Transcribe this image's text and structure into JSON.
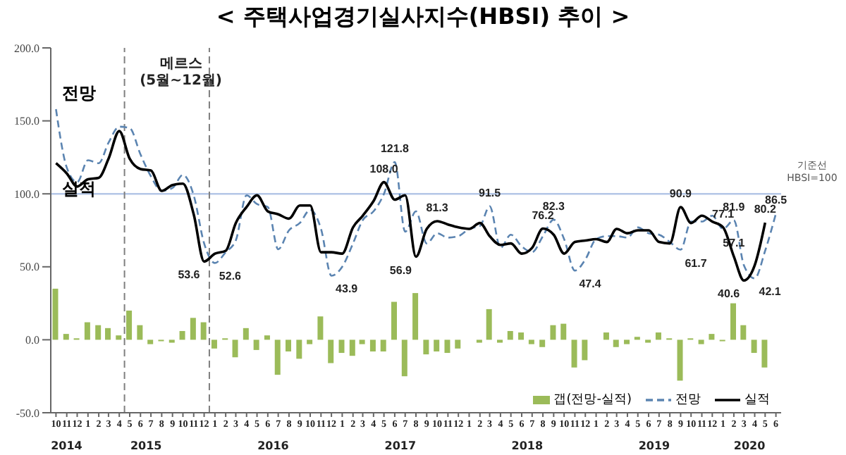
{
  "chart_data": {
    "type": "line",
    "title": "< 주택사업경기실사지수(HBSI) 추이 >",
    "x": [
      "2014-10",
      "2014-11",
      "2014-12",
      "2015-01",
      "2015-02",
      "2015-03",
      "2015-04",
      "2015-05",
      "2015-06",
      "2015-07",
      "2015-08",
      "2015-09",
      "2015-10",
      "2015-11",
      "2015-12",
      "2016-01",
      "2016-02",
      "2016-03",
      "2016-04",
      "2016-05",
      "2016-06",
      "2016-07",
      "2016-08",
      "2016-09",
      "2016-10",
      "2016-11",
      "2016-12",
      "2017-01",
      "2017-02",
      "2017-03",
      "2017-04",
      "2017-05",
      "2017-06",
      "2017-07",
      "2017-08",
      "2017-09",
      "2017-10",
      "2017-11",
      "2017-12",
      "2018-01",
      "2018-02",
      "2018-03",
      "2018-04",
      "2018-05",
      "2018-06",
      "2018-07",
      "2018-08",
      "2018-09",
      "2018-10",
      "2018-11",
      "2018-12",
      "2019-01",
      "2019-02",
      "2019-03",
      "2019-04",
      "2019-05",
      "2019-06",
      "2019-07",
      "2019-08",
      "2019-09",
      "2019-10",
      "2019-11",
      "2019-12",
      "2020-01",
      "2020-02",
      "2020-03",
      "2020-04",
      "2020-05",
      "2020-06"
    ],
    "xlim": [
      "2014-09-16",
      "2020-06-16"
    ],
    "xticks": [
      {
        "value": "2014-10",
        "label": "10"
      },
      {
        "value": "2014-11",
        "label": "11"
      },
      {
        "value": "2014-12",
        "label": "12"
      },
      {
        "value": "2015-01",
        "label": "1"
      },
      {
        "value": "2015-02",
        "label": "2"
      },
      {
        "value": "2015-03",
        "label": "3"
      },
      {
        "value": "2015-04",
        "label": "4"
      },
      {
        "value": "2015-05",
        "label": "5"
      },
      {
        "value": "2015-06",
        "label": "6"
      },
      {
        "value": "2015-07",
        "label": "7"
      },
      {
        "value": "2015-08",
        "label": "8"
      },
      {
        "value": "2015-09",
        "label": "9"
      },
      {
        "value": "2015-10",
        "label": "10"
      },
      {
        "value": "2015-11",
        "label": "11"
      },
      {
        "value": "2015-12",
        "label": "12"
      },
      {
        "value": "2016-01",
        "label": "1"
      },
      {
        "value": "2016-02",
        "label": "2"
      },
      {
        "value": "2016-03",
        "label": "3"
      },
      {
        "value": "2016-04",
        "label": "4"
      },
      {
        "value": "2016-05",
        "label": "5"
      },
      {
        "value": "2016-06",
        "label": "6"
      },
      {
        "value": "2016-07",
        "label": "7"
      },
      {
        "value": "2016-08",
        "label": "8"
      },
      {
        "value": "2016-09",
        "label": "9"
      },
      {
        "value": "2016-10",
        "label": "10"
      },
      {
        "value": "2016-11",
        "label": "11"
      },
      {
        "value": "2016-12",
        "label": "12"
      },
      {
        "value": "2017-01",
        "label": "1"
      },
      {
        "value": "2017-02",
        "label": "2"
      },
      {
        "value": "2017-03",
        "label": "3"
      },
      {
        "value": "2017-04",
        "label": "4"
      },
      {
        "value": "2017-05",
        "label": "5"
      },
      {
        "value": "2017-06",
        "label": "6"
      },
      {
        "value": "2017-07",
        "label": "7"
      },
      {
        "value": "2017-08",
        "label": "8"
      },
      {
        "value": "2017-09",
        "label": "9"
      },
      {
        "value": "2017-10",
        "label": "10"
      },
      {
        "value": "2017-11",
        "label": "11"
      },
      {
        "value": "2017-12",
        "label": "12"
      },
      {
        "value": "2018-01",
        "label": "1"
      },
      {
        "value": "2018-02",
        "label": "2"
      },
      {
        "value": "2018-03",
        "label": "3"
      },
      {
        "value": "2018-04",
        "label": "4"
      },
      {
        "value": "2018-05",
        "label": "5"
      },
      {
        "value": "2018-06",
        "label": "6"
      },
      {
        "value": "2018-07",
        "label": "7"
      },
      {
        "value": "2018-08",
        "label": "8"
      },
      {
        "value": "2018-09",
        "label": "9"
      },
      {
        "value": "2018-10",
        "label": "10"
      },
      {
        "value": "2018-11",
        "label": "11"
      },
      {
        "value": "2018-12",
        "label": "12"
      },
      {
        "value": "2019-01",
        "label": "1"
      },
      {
        "value": "2019-02",
        "label": "2"
      },
      {
        "value": "2019-03",
        "label": "3"
      },
      {
        "value": "2019-04",
        "label": "4"
      },
      {
        "value": "2019-05",
        "label": "5"
      },
      {
        "value": "2019-06",
        "label": "6"
      },
      {
        "value": "2019-07",
        "label": "7"
      },
      {
        "value": "2019-08",
        "label": "8"
      },
      {
        "value": "2019-09",
        "label": "9"
      },
      {
        "value": "2019-10",
        "label": "10"
      },
      {
        "value": "2019-11",
        "label": "11"
      },
      {
        "value": "2019-12",
        "label": "12"
      },
      {
        "value": "2020-01",
        "label": "1"
      },
      {
        "value": "2020-02",
        "label": "2"
      },
      {
        "value": "2020-03",
        "label": "3"
      },
      {
        "value": "2020-04",
        "label": "4"
      },
      {
        "value": "2020-05",
        "label": "5"
      },
      {
        "value": "2020-06",
        "label": "6"
      }
    ],
    "ylim": [
      -50,
      200
    ],
    "yticks": [
      {
        "value": -50,
        "label": "-50.0"
      },
      {
        "value": 0,
        "label": "0.0"
      },
      {
        "value": 50,
        "label": "50.0"
      },
      {
        "value": 100,
        "label": "100.0"
      },
      {
        "value": 150,
        "label": "150.0"
      },
      {
        "value": 200,
        "label": "200.0"
      }
    ],
    "grid": false,
    "marker": "none",
    "legend": "bottom right",
    "series": [
      {
        "name": "갭(전망-실적)",
        "type": "bar",
        "color": "#9bbb59",
        "values": [
          35,
          4,
          1,
          12,
          10,
          8,
          3,
          20,
          10,
          -3,
          -1,
          -2,
          6,
          15,
          12,
          -6,
          1,
          -12,
          8,
          -7,
          3,
          -24,
          -8,
          -13,
          -3,
          16,
          -16,
          -9,
          -11,
          -3,
          -8,
          -8,
          26,
          -25,
          32,
          -10,
          -8,
          -9,
          -6,
          0,
          -2,
          21,
          -2,
          6,
          5,
          -3,
          -5,
          10,
          11,
          -19,
          -14,
          0,
          5,
          -5,
          -3,
          2,
          -2,
          5,
          1,
          -28,
          1,
          -3,
          4,
          -1,
          25,
          10,
          -9,
          -19,
          null
        ]
      },
      {
        "name": "전망",
        "color": "#5b84b1",
        "line_style": "dashed",
        "values": [
          158,
          118,
          108,
          123,
          121,
          135,
          146,
          145,
          127,
          112,
          102,
          104,
          113,
          99,
          66,
          52.6,
          60,
          68,
          99,
          93,
          91,
          62,
          75,
          80,
          89,
          76,
          43.9,
          50,
          66,
          82,
          88,
          100,
          121.8,
          74,
          88,
          66,
          73,
          70,
          71,
          76,
          78,
          91.5,
          63,
          72,
          64,
          60,
          71,
          82.3,
          69,
          47.4,
          55,
          69,
          71,
          71,
          70,
          77,
          73,
          72,
          67,
          61.7,
          81,
          81,
          85,
          76,
          81.9,
          51,
          42.1,
          61,
          86.5
        ],
        "value_labels": [
          null,
          null,
          null,
          null,
          null,
          null,
          null,
          null,
          null,
          null,
          null,
          null,
          null,
          null,
          null,
          "52.6",
          null,
          null,
          null,
          null,
          null,
          null,
          null,
          null,
          null,
          null,
          "43.9",
          null,
          null,
          null,
          null,
          null,
          "121.8",
          null,
          null,
          null,
          null,
          null,
          null,
          null,
          null,
          "91.5",
          null,
          null,
          null,
          null,
          null,
          "82.3",
          null,
          "47.4",
          null,
          null,
          null,
          null,
          null,
          null,
          null,
          null,
          null,
          "61.7",
          null,
          null,
          null,
          null,
          "81.9",
          null,
          "42.1",
          null,
          "86.5"
        ]
      },
      {
        "name": "실적",
        "color": "#000000",
        "line_style": "solid",
        "values": [
          121,
          114,
          105,
          110,
          111,
          124,
          143,
          124,
          117,
          116,
          102,
          106,
          107,
          86,
          53.6,
          59,
          61,
          80,
          91,
          99,
          88,
          86,
          83,
          92,
          92,
          60,
          60,
          59,
          77,
          85,
          95,
          108.0,
          96,
          99,
          56.9,
          76,
          81.3,
          79,
          77,
          76,
          80,
          71,
          65,
          66,
          59,
          63,
          76.2,
          72,
          59,
          67,
          68,
          69,
          67,
          76,
          73,
          75,
          75,
          67,
          66,
          90.9,
          80,
          85,
          81,
          77.1,
          57.1,
          40.6,
          51,
          80.2,
          null
        ],
        "value_labels": [
          null,
          null,
          null,
          null,
          null,
          null,
          null,
          null,
          null,
          null,
          null,
          null,
          null,
          null,
          "53.6",
          null,
          null,
          null,
          null,
          null,
          null,
          null,
          null,
          null,
          null,
          null,
          null,
          null,
          null,
          null,
          null,
          "108.0",
          null,
          null,
          "56.9",
          null,
          "81.3",
          null,
          null,
          null,
          null,
          null,
          null,
          null,
          null,
          null,
          "76.2",
          null,
          null,
          null,
          null,
          null,
          null,
          null,
          null,
          null,
          null,
          null,
          null,
          "90.9",
          null,
          null,
          null,
          "77.1",
          "57.1",
          "40.6",
          null,
          "80.2",
          null
        ]
      }
    ],
    "ref_lines": [
      {
        "axis": "y",
        "value": 100,
        "label": "기준선\nHBSI=100",
        "color": "#b4c7e7",
        "line_style": "solid"
      },
      {
        "axis": "x",
        "value": "2015-04-16",
        "label": "메르스\n(5월~12월)",
        "color": "#7f7f7f",
        "line_style": "dashed"
      },
      {
        "axis": "x",
        "value": "2015-12-16",
        "label": null,
        "color": "#7f7f7f",
        "line_style": "dashed"
      }
    ],
    "annotations": [
      "2014",
      "2015",
      "2016",
      "2017",
      "2018",
      "2019",
      "2020",
      "전망",
      "실적"
    ]
  }
}
